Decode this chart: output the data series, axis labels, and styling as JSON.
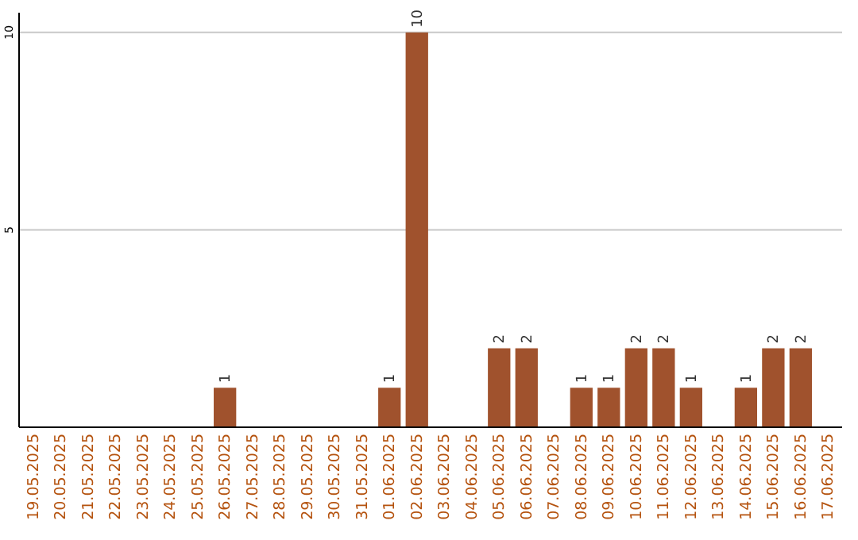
{
  "chart_data": {
    "type": "bar",
    "categories": [
      "19.05.2025",
      "20.05.2025",
      "21.05.2025",
      "22.05.2025",
      "23.05.2025",
      "24.05.2025",
      "25.05.2025",
      "26.05.2025",
      "27.05.2025",
      "28.05.2025",
      "29.05.2025",
      "30.05.2025",
      "31.05.2025",
      "01.06.2025",
      "02.06.2025",
      "03.06.2025",
      "04.06.2025",
      "05.06.2025",
      "06.06.2025",
      "07.06.2025",
      "08.06.2025",
      "09.06.2025",
      "10.06.2025",
      "11.06.2025",
      "12.06.2025",
      "13.06.2025",
      "14.06.2025",
      "15.06.2025",
      "16.06.2025",
      "17.06.2025"
    ],
    "values": [
      0,
      0,
      0,
      0,
      0,
      0,
      0,
      1,
      0,
      0,
      0,
      0,
      0,
      1,
      10,
      0,
      0,
      2,
      2,
      0,
      1,
      1,
      2,
      2,
      1,
      0,
      1,
      2,
      2,
      0
    ],
    "value_labels": [
      null,
      null,
      null,
      null,
      null,
      null,
      null,
      "1",
      null,
      null,
      null,
      null,
      null,
      "1",
      "10",
      null,
      null,
      "2",
      "2",
      null,
      "1",
      "1",
      "2",
      "2",
      "1",
      null,
      "1",
      "2",
      "2",
      null
    ],
    "color": "#a0522d",
    "ylim": [
      0,
      10.5
    ],
    "yticks": [
      5,
      10
    ],
    "grid": "y"
  }
}
